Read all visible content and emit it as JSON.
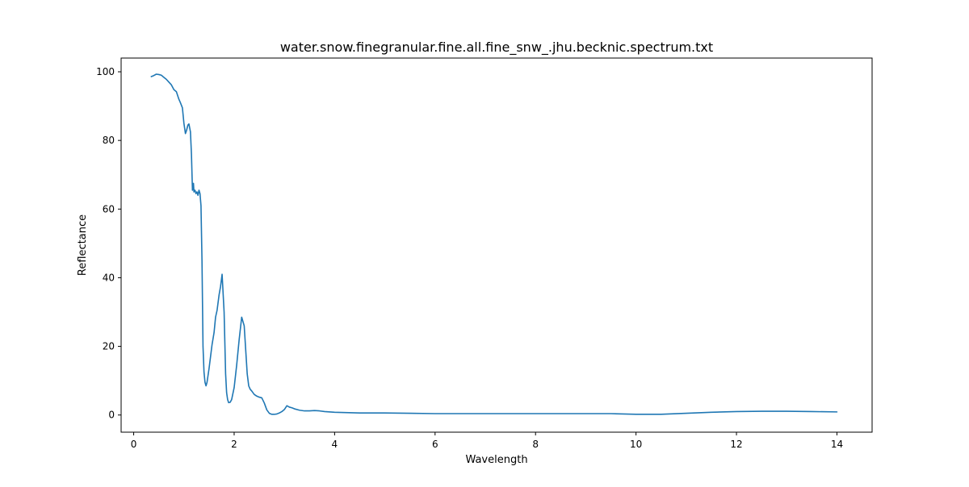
{
  "chart_data": {
    "type": "line",
    "title": "water.snow.finegranular.fine.all.fine_snw_.jhu.becknic.spectrum.txt",
    "xlabel": "Wavelength",
    "ylabel": "Reflectance",
    "xlim": [
      -0.25,
      14.7
    ],
    "ylim": [
      -5.0,
      104.0
    ],
    "xticks": [
      0,
      2,
      4,
      6,
      8,
      10,
      12,
      14
    ],
    "yticks": [
      0,
      20,
      40,
      60,
      80,
      100
    ],
    "grid": false,
    "legend": "none",
    "series": [
      {
        "color": "#1f77b4",
        "x": [
          0.35,
          0.4,
          0.45,
          0.5,
          0.55,
          0.6,
          0.65,
          0.7,
          0.75,
          0.8,
          0.85,
          0.9,
          0.93,
          0.97,
          1.0,
          1.03,
          1.05,
          1.08,
          1.1,
          1.13,
          1.15,
          1.17,
          1.19,
          1.2,
          1.22,
          1.24,
          1.26,
          1.28,
          1.3,
          1.32,
          1.34,
          1.36,
          1.38,
          1.4,
          1.42,
          1.44,
          1.46,
          1.48,
          1.5,
          1.53,
          1.56,
          1.6,
          1.63,
          1.66,
          1.7,
          1.73,
          1.76,
          1.8,
          1.83,
          1.85,
          1.87,
          1.89,
          1.92,
          1.95,
          2.0,
          2.05,
          2.1,
          2.15,
          2.2,
          2.23,
          2.26,
          2.29,
          2.32,
          2.35,
          2.4,
          2.45,
          2.5,
          2.55,
          2.6,
          2.65,
          2.7,
          2.75,
          2.8,
          2.85,
          2.9,
          2.95,
          3.0,
          3.05,
          3.1,
          3.15,
          3.2,
          3.3,
          3.4,
          3.5,
          3.6,
          3.7,
          3.8,
          4.0,
          4.5,
          5.0,
          5.5,
          6.0,
          6.5,
          7.0,
          7.5,
          8.0,
          8.5,
          9.0,
          9.5,
          10.0,
          10.5,
          11.0,
          11.5,
          12.0,
          12.5,
          13.0,
          13.5,
          14.0
        ],
        "y": [
          98.6,
          98.9,
          99.3,
          99.2,
          99.0,
          98.4,
          97.8,
          97.0,
          96.2,
          94.8,
          94.2,
          92.0,
          91.0,
          89.5,
          85.0,
          82.0,
          82.8,
          84.5,
          84.8,
          82.5,
          76.0,
          65.5,
          67.5,
          65.0,
          65.5,
          64.5,
          65.0,
          64.0,
          65.5,
          64.5,
          61.0,
          45.0,
          20.0,
          12.5,
          9.5,
          8.5,
          9.5,
          11.5,
          13.5,
          17.0,
          20.5,
          24.0,
          28.5,
          30.5,
          35.0,
          37.5,
          41.0,
          30.0,
          12.0,
          6.5,
          4.5,
          3.6,
          3.7,
          4.5,
          8.0,
          14.5,
          22.0,
          28.5,
          26.0,
          19.0,
          12.0,
          8.5,
          7.5,
          7.0,
          6.0,
          5.5,
          5.2,
          5.0,
          3.5,
          1.5,
          0.5,
          0.2,
          0.2,
          0.3,
          0.6,
          1.0,
          1.6,
          2.7,
          2.3,
          2.1,
          1.8,
          1.4,
          1.2,
          1.2,
          1.3,
          1.2,
          1.0,
          0.8,
          0.6,
          0.6,
          0.5,
          0.4,
          0.4,
          0.4,
          0.4,
          0.4,
          0.4,
          0.4,
          0.4,
          0.2,
          0.2,
          0.5,
          0.8,
          1.0,
          1.1,
          1.1,
          1.0,
          0.9
        ]
      }
    ]
  }
}
